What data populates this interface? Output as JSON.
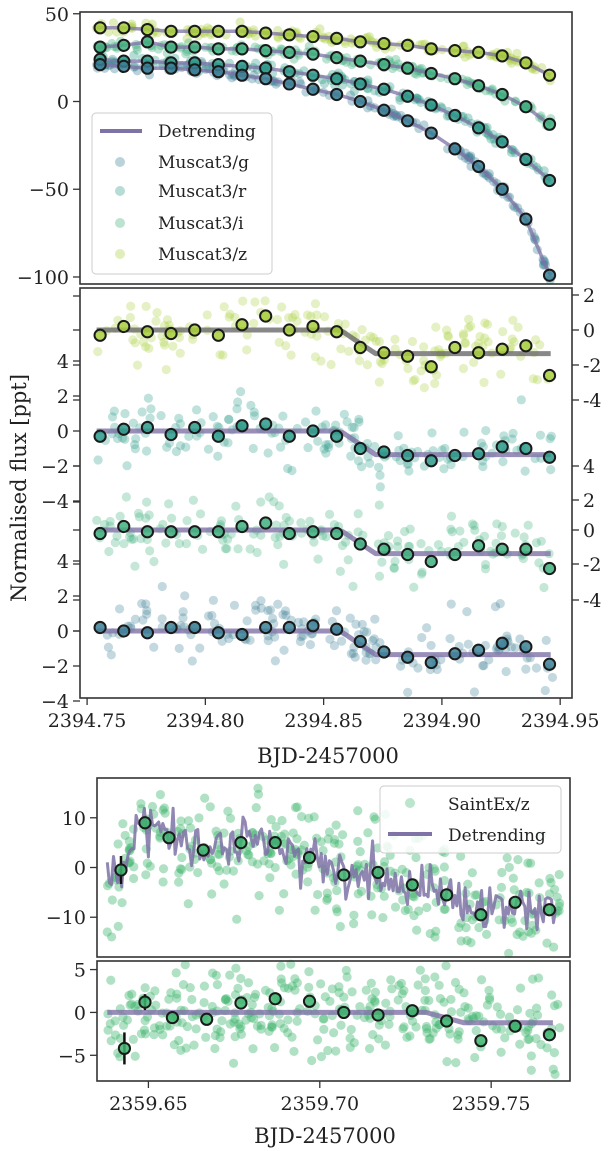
{
  "figure": {
    "ylabel": "Normalised flux [ppt]",
    "xlabel_top": "BJD-2457000",
    "xlabel_bottom": "BJD-2457000"
  },
  "colors": {
    "g": "#3a7f95",
    "r": "#2a9a88",
    "i": "#3fb07e",
    "z": "#a8cf3c",
    "saintex": "#3cb46c",
    "detrend": "#7e72a6",
    "bin_edge": "#1a1a1a"
  },
  "chart_data": [
    {
      "type": "scatter",
      "panel": "muscat-raw",
      "title": "",
      "xlabel": "",
      "ylabel": "",
      "xlim": [
        2394.747,
        2394.955
      ],
      "ylim": [
        -104,
        51
      ],
      "yticks": [
        "50",
        "0",
        "−50",
        "−100"
      ],
      "ytick_values": [
        50,
        0,
        -50,
        -100
      ],
      "legend": {
        "location": "lower-left",
        "entries": [
          "Detrending",
          "Muscat3/g",
          "Muscat3/r",
          "Muscat3/i",
          "Muscat3/z"
        ]
      },
      "binned_x": [
        2394.7555,
        2394.7655,
        2394.7755,
        2394.7855,
        2394.7955,
        2394.8055,
        2394.8155,
        2394.8255,
        2394.8355,
        2394.8455,
        2394.8555,
        2394.8655,
        2394.8755,
        2394.8855,
        2394.8955,
        2394.9055,
        2394.9155,
        2394.9255,
        2394.9355,
        2394.9455
      ],
      "series": [
        {
          "name": "Muscat3/z",
          "band": "z",
          "binned_y": [
            42,
            42,
            41,
            40,
            40,
            40,
            40,
            39,
            38,
            37,
            36,
            34,
            33,
            32,
            30,
            29,
            28,
            26,
            22,
            15
          ]
        },
        {
          "name": "Muscat3/i",
          "band": "i",
          "binned_y": [
            31,
            32,
            34,
            31,
            31,
            30,
            30,
            29,
            28,
            27,
            25,
            23,
            21,
            19,
            16,
            13,
            9,
            4,
            -3,
            -13
          ]
        },
        {
          "name": "Muscat3/r",
          "band": "r",
          "binned_y": [
            24,
            23,
            23,
            22,
            22,
            21,
            20,
            19,
            17,
            15,
            13,
            10,
            7,
            3,
            -2,
            -8,
            -15,
            -23,
            -33,
            -45
          ]
        },
        {
          "name": "Muscat3/g",
          "band": "g",
          "binned_y": [
            21,
            20,
            19,
            19,
            18,
            17,
            15,
            13,
            10,
            7,
            4,
            0,
            -5,
            -11,
            -18,
            -27,
            -37,
            -50,
            -67,
            -99
          ]
        }
      ]
    },
    {
      "type": "scatter",
      "panel": "muscat-detrended",
      "title": "",
      "xlabel": "BJD-2457000",
      "ylabel": "Normalised flux [ppt]",
      "xlim": [
        2394.747,
        2394.955
      ],
      "xticks": [
        "2394.75",
        "2394.80",
        "2394.85",
        "2394.90",
        "2394.95"
      ],
      "xtick_values": [
        2394.75,
        2394.8,
        2394.85,
        2394.9,
        2394.95
      ],
      "left_yticks": [
        "4",
        "2",
        "0",
        "−2",
        "−4",
        "4",
        "2",
        "0",
        "−2",
        "−4"
      ],
      "right_yticks": [
        "2",
        "0",
        "-2",
        "-4",
        "4",
        "2",
        "0",
        "-2",
        "-4"
      ],
      "binned_x": [
        2394.7555,
        2394.7655,
        2394.7755,
        2394.7855,
        2394.7955,
        2394.8055,
        2394.8155,
        2394.8255,
        2394.8355,
        2394.8455,
        2394.8555,
        2394.8655,
        2394.8755,
        2394.8855,
        2394.8955,
        2394.9055,
        2394.9155,
        2394.9255,
        2394.9355,
        2394.9455
      ],
      "series": [
        {
          "name": "Muscat3/z",
          "band": "z",
          "offset": 0,
          "binned_y": [
            -0.3,
            0.2,
            -0.1,
            -0.2,
            0.0,
            -0.3,
            0.3,
            0.8,
            0.0,
            0.2,
            -0.1,
            -1.0,
            -1.3,
            -1.5,
            -2.1,
            -1.0,
            -1.3,
            -1.1,
            -0.9,
            -2.6
          ]
        },
        {
          "name": "Muscat3/r",
          "band": "r",
          "offset": 0,
          "binned_y": [
            -0.3,
            0.1,
            0.2,
            -0.2,
            0.2,
            -0.3,
            0.3,
            0.4,
            -0.3,
            0.0,
            -0.3,
            -1.0,
            -1.2,
            -1.4,
            -1.7,
            -1.4,
            -1.3,
            -0.9,
            -1.0,
            -1.5
          ]
        },
        {
          "name": "Muscat3/i",
          "band": "i",
          "offset": 0,
          "binned_y": [
            -0.2,
            0.2,
            -0.1,
            -0.1,
            -0.1,
            -0.1,
            0.2,
            0.4,
            -0.2,
            -0.1,
            -0.2,
            -0.8,
            -1.1,
            -1.4,
            -1.8,
            -1.4,
            -0.9,
            -1.1,
            -1.1,
            -2.2
          ]
        },
        {
          "name": "Muscat3/g",
          "band": "g",
          "offset": 0,
          "binned_y": [
            0.2,
            0.0,
            -0.1,
            0.2,
            0.2,
            -0.1,
            -0.2,
            0.2,
            0.2,
            0.3,
            0.1,
            -0.6,
            -1.2,
            -1.5,
            -1.8,
            -1.3,
            -1.1,
            -0.7,
            -0.9,
            -1.9
          ]
        }
      ],
      "model": {
        "ingress_start": 2394.857,
        "ingress_end": 2394.872,
        "depth": 1.35
      }
    },
    {
      "type": "scatter",
      "panel": "saintex-raw",
      "title": "",
      "xlabel": "",
      "ylabel": "",
      "xlim": [
        2359.635,
        2359.773
      ],
      "ylim": [
        -18,
        18
      ],
      "yticks": [
        "10",
        "0",
        "−10"
      ],
      "ytick_values": [
        10,
        0,
        -10
      ],
      "legend": {
        "location": "top-right",
        "entries": [
          "SaintEx/z",
          "Detrending"
        ]
      },
      "series": [
        {
          "name": "SaintEx/z",
          "binned_x": [
            2359.642,
            2359.649,
            2359.656,
            2359.666,
            2359.677,
            2359.687,
            2359.697,
            2359.707,
            2359.717,
            2359.727,
            2359.737,
            2359.747,
            2359.757,
            2359.767
          ],
          "binned_y": [
            -0.5,
            9,
            6,
            3.5,
            5,
            5,
            2,
            -1.5,
            -1,
            -3.5,
            -5.5,
            -9.5,
            -7,
            -8.5
          ]
        }
      ]
    },
    {
      "type": "scatter",
      "panel": "saintex-detrended",
      "title": "",
      "xlabel": "BJD-2457000",
      "ylabel": "",
      "xlim": [
        2359.635,
        2359.773
      ],
      "ylim": [
        -8,
        6
      ],
      "xticks": [
        "2359.65",
        "2359.70",
        "2359.75"
      ],
      "xtick_values": [
        2359.65,
        2359.7,
        2359.75
      ],
      "yticks": [
        "5",
        "0",
        "−5"
      ],
      "ytick_values": [
        5,
        0,
        -5
      ],
      "series": [
        {
          "name": "SaintEx/z",
          "binned_x": [
            2359.643,
            2359.649,
            2359.657,
            2359.667,
            2359.677,
            2359.687,
            2359.697,
            2359.707,
            2359.717,
            2359.727,
            2359.737,
            2359.747,
            2359.757,
            2359.767
          ],
          "binned_y": [
            -4.2,
            1.2,
            -0.6,
            -0.8,
            1.1,
            1.6,
            1.3,
            0.0,
            -0.3,
            0.2,
            -1.0,
            -3.3,
            -1.6,
            -2.6
          ]
        }
      ],
      "model": {
        "ingress_start": 2359.731,
        "ingress_end": 2359.742,
        "depth": 1.2
      }
    }
  ]
}
